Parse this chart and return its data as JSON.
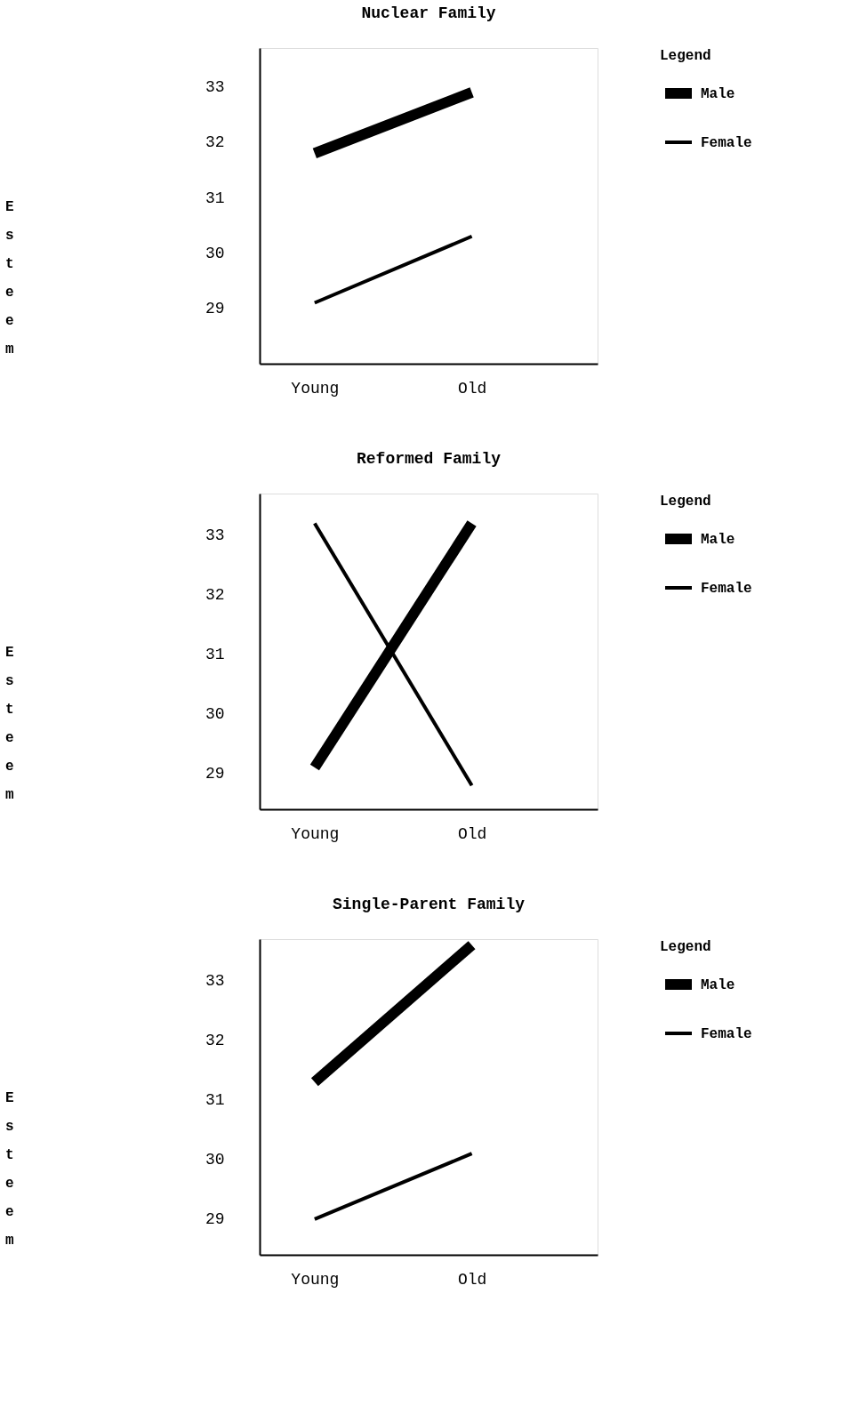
{
  "chart_data": [
    {
      "type": "line",
      "title": "Nuclear  Family",
      "ylabel": "Esteem",
      "legend_title": "Legend",
      "categories": [
        "Young",
        "Old"
      ],
      "ylim": [
        28,
        33.7
      ],
      "yticks": [
        29,
        30,
        31,
        32,
        33
      ],
      "grid": false,
      "legend": "right",
      "marker": "none",
      "series": [
        {
          "name": "Male",
          "color": "#000000",
          "values": [
            31.8,
            32.9
          ]
        },
        {
          "name": "Female",
          "color": "#000000",
          "values": [
            29.1,
            30.3
          ]
        }
      ]
    },
    {
      "type": "line",
      "title": "Reformed  Family",
      "ylabel": "Esteem",
      "legend_title": "Legend",
      "categories": [
        "Young",
        "Old"
      ],
      "ylim": [
        28.4,
        33.7
      ],
      "yticks": [
        29,
        30,
        31,
        32,
        33
      ],
      "grid": false,
      "legend": "right",
      "marker": "none",
      "series": [
        {
          "name": "Male",
          "color": "#000000",
          "values": [
            29.1,
            33.2
          ]
        },
        {
          "name": "Female",
          "color": "#000000",
          "values": [
            33.2,
            28.8
          ]
        }
      ]
    },
    {
      "type": "line",
      "title": "Single-Parent  Family",
      "ylabel": "Esteem",
      "legend_title": "Legend",
      "categories": [
        "Young",
        "Old"
      ],
      "ylim": [
        28.4,
        33.7
      ],
      "yticks": [
        29,
        30,
        31,
        32,
        33
      ],
      "grid": false,
      "legend": "right",
      "marker": "none",
      "series": [
        {
          "name": "Male",
          "color": "#000000",
          "values": [
            31.3,
            33.6
          ]
        },
        {
          "name": "Female",
          "color": "#000000",
          "values": [
            29.0,
            30.1
          ]
        }
      ]
    }
  ]
}
